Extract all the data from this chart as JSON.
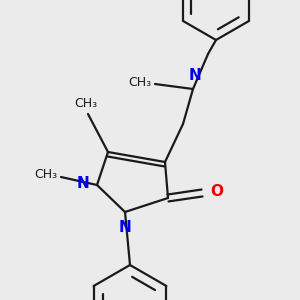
{
  "bg_color": "#ebebeb",
  "bond_color": "#1a1a1a",
  "nitrogen_color": "#0000ee",
  "oxygen_color": "#ee0000",
  "line_width": 1.6,
  "figsize": [
    3.0,
    3.0
  ],
  "dpi": 100,
  "xlim": [
    0,
    300
  ],
  "ylim": [
    0,
    300
  ]
}
